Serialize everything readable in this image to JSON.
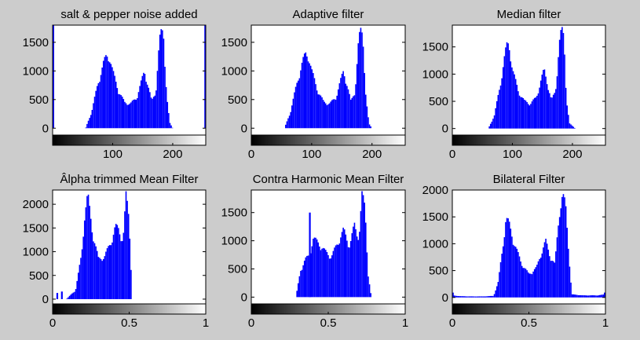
{
  "figure": {
    "background": "#cccccc",
    "bar_color": "#0000ff"
  },
  "chart_data": [
    {
      "type": "bar",
      "title": "salt & pepper noise added",
      "xlim": [
        0,
        255
      ],
      "ylim": [
        -120,
        1800
      ],
      "xticks": [
        100,
        200
      ],
      "xtick_labels": [
        "100",
        "200"
      ],
      "yticks": [
        0,
        500,
        1000,
        1500
      ],
      "ytick_labels": [
        "0",
        "500",
        "1000",
        "1500"
      ],
      "spikes": [
        {
          "x": 1,
          "y": 1800
        },
        {
          "x": 254,
          "y": 1800
        }
      ],
      "x": [
        55,
        65,
        75,
        85,
        90,
        95,
        100,
        110,
        120,
        130,
        140,
        148,
        153,
        158,
        165,
        172,
        178,
        182,
        185,
        190,
        195,
        200
      ],
      "values": [
        0,
        300,
        800,
        1200,
        1330,
        1300,
        1050,
        680,
        470,
        450,
        560,
        860,
        1050,
        830,
        490,
        680,
        1600,
        1800,
        1700,
        600,
        100,
        0
      ]
    },
    {
      "type": "bar",
      "title": "Adaptive filter",
      "xlim": [
        0,
        255
      ],
      "ylim": [
        -120,
        1800
      ],
      "xticks": [
        0,
        100,
        200
      ],
      "xtick_labels": [
        "0",
        "100",
        "200"
      ],
      "yticks": [
        0,
        500,
        1000,
        1500
      ],
      "ytick_labels": [
        "0",
        "500",
        "1000",
        "1500"
      ],
      "spikes": [],
      "x": [
        55,
        65,
        75,
        85,
        90,
        95,
        100,
        110,
        120,
        130,
        140,
        148,
        153,
        158,
        165,
        172,
        178,
        182,
        185,
        190,
        195,
        200
      ],
      "values": [
        0,
        300,
        800,
        1220,
        1360,
        1330,
        1060,
        690,
        480,
        450,
        560,
        870,
        1060,
        830,
        490,
        680,
        1620,
        1800,
        1700,
        560,
        80,
        0
      ]
    },
    {
      "type": "bar",
      "title": "Median filter",
      "xlim": [
        0,
        255
      ],
      "ylim": [
        -120,
        1900
      ],
      "xticks": [
        0,
        100,
        200
      ],
      "xtick_labels": [
        "0",
        "100",
        "200"
      ],
      "yticks": [
        0,
        500,
        1000,
        1500
      ],
      "ytick_labels": [
        "0",
        "500",
        "1000",
        "1500"
      ],
      "spikes": [],
      "x": [
        60,
        70,
        80,
        88,
        92,
        96,
        100,
        110,
        120,
        130,
        140,
        148,
        153,
        158,
        165,
        172,
        178,
        182,
        186,
        190,
        195,
        205
      ],
      "values": [
        0,
        250,
        850,
        1450,
        1650,
        1550,
        1150,
        720,
        530,
        480,
        600,
        950,
        1130,
        900,
        540,
        720,
        1650,
        1900,
        1750,
        600,
        100,
        0
      ]
    },
    {
      "type": "bar",
      "title": "Âlpha trimmed Mean Filter",
      "xlim": [
        0,
        1
      ],
      "ylim": [
        -100,
        2300
      ],
      "xticks": [
        0,
        0.5,
        1
      ],
      "xtick_labels": [
        "0",
        "0.5",
        "1"
      ],
      "yticks": [
        0,
        500,
        1000,
        1500,
        2000
      ],
      "ytick_labels": [
        "0",
        "500",
        "1000",
        "1500",
        "2000"
      ],
      "spikes": [
        {
          "x": 0.03,
          "y": 130
        },
        {
          "x": 0.06,
          "y": 160
        }
      ],
      "x": [
        0.09,
        0.15,
        0.19,
        0.21,
        0.23,
        0.26,
        0.3,
        0.34,
        0.38,
        0.41,
        0.43,
        0.46,
        0.48,
        0.5,
        0.52
      ],
      "values": [
        0,
        200,
        1000,
        1900,
        2300,
        1500,
        880,
        950,
        1250,
        1600,
        1550,
        1300,
        2300,
        1800,
        0
      ]
    },
    {
      "type": "bar",
      "title": "Contra Harmonic  Mean Filter",
      "xlim": [
        0,
        1
      ],
      "ylim": [
        -120,
        1900
      ],
      "xticks": [
        0,
        0.5,
        1
      ],
      "xtick_labels": [
        "0",
        "0.5",
        "1"
      ],
      "yticks": [
        0,
        500,
        1000,
        1500
      ],
      "ytick_labels": [
        "0",
        "500",
        "1000",
        "1500"
      ],
      "spikes": [
        {
          "x": 0.38,
          "y": 1500
        }
      ],
      "x": [
        0.29,
        0.32,
        0.35,
        0.38,
        0.4,
        0.44,
        0.48,
        0.52,
        0.56,
        0.6,
        0.64,
        0.67,
        0.7,
        0.72,
        0.74,
        0.76,
        0.78
      ],
      "values": [
        0,
        500,
        700,
        780,
        1100,
        1000,
        850,
        750,
        1000,
        1250,
        950,
        1350,
        1100,
        1900,
        1700,
        400,
        0
      ]
    },
    {
      "type": "bar",
      "title": "Bilateral Filter",
      "xlim": [
        0,
        1
      ],
      "ylim": [
        -120,
        2000
      ],
      "xticks": [
        0,
        0.5,
        1
      ],
      "xtick_labels": [
        "0",
        "0.5",
        "1"
      ],
      "yticks": [
        0,
        500,
        1000,
        1500,
        2000
      ],
      "ytick_labels": [
        "0",
        "500",
        "1000",
        "1500",
        "2000"
      ],
      "spikes": [
        {
          "x": 0.003,
          "y": 90
        },
        {
          "x": 0.995,
          "y": 90
        }
      ],
      "x": [
        0.0,
        0.05,
        0.12,
        0.2,
        0.27,
        0.3,
        0.33,
        0.35,
        0.37,
        0.4,
        0.45,
        0.5,
        0.55,
        0.59,
        0.61,
        0.64,
        0.67,
        0.7,
        0.72,
        0.74,
        0.78,
        0.85,
        0.95,
        1.0
      ],
      "values": [
        40,
        25,
        20,
        20,
        30,
        300,
        1000,
        1550,
        1450,
        1100,
        680,
        450,
        580,
        950,
        1100,
        800,
        640,
        1700,
        2000,
        1800,
        60,
        40,
        40,
        60
      ]
    }
  ]
}
